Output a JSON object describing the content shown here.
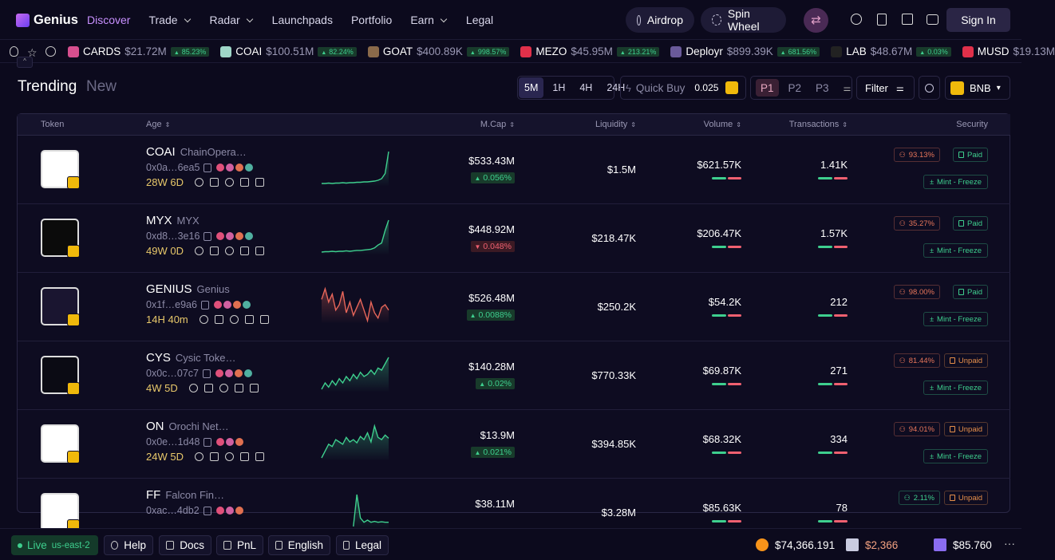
{
  "nav": {
    "brand": "Genius",
    "links": [
      {
        "label": "Discover",
        "active": true,
        "dropdown": false
      },
      {
        "label": "Trade",
        "active": false,
        "dropdown": true
      },
      {
        "label": "Radar",
        "active": false,
        "dropdown": true
      },
      {
        "label": "Launchpads",
        "active": false,
        "dropdown": false
      },
      {
        "label": "Portfolio",
        "active": false,
        "dropdown": false
      },
      {
        "label": "Earn",
        "active": false,
        "dropdown": true
      },
      {
        "label": "Legal",
        "active": false,
        "dropdown": false
      }
    ],
    "airdrop": "Airdrop",
    "spin": "Spin Wheel",
    "signin": "Sign In"
  },
  "ticker": [
    {
      "symbol": "CARDS",
      "mcap": "$21.72M",
      "change": "85.23%",
      "icon": "#d64f8f"
    },
    {
      "symbol": "COAI",
      "mcap": "$100.51M",
      "change": "82.24%",
      "icon": "#9fd6c8"
    },
    {
      "symbol": "GOAT",
      "mcap": "$400.89K",
      "change": "998.57%",
      "icon": "#8a6a4a"
    },
    {
      "symbol": "MEZO",
      "mcap": "$45.95M",
      "change": "213.21%",
      "icon": "#e0304a"
    },
    {
      "symbol": "Deployr",
      "mcap": "$899.39K",
      "change": "681.56%",
      "icon": "#6a5a9a"
    },
    {
      "symbol": "LAB",
      "mcap": "$48.67M",
      "change": "0.03%",
      "icon": "#222222"
    },
    {
      "symbol": "MUSD",
      "mcap": "$19.13M",
      "change": null,
      "icon": "#e0304a"
    }
  ],
  "toolbar": {
    "tabs": [
      "Trending",
      "New"
    ],
    "times": [
      "5M",
      "1H",
      "4H",
      "24H"
    ],
    "quick_buy": "Quick Buy",
    "amount": "0.025",
    "presets": [
      "P1",
      "P2",
      "P3"
    ],
    "filter": "Filter",
    "chain": "BNB"
  },
  "table": {
    "headers": [
      "Token",
      "Age",
      "M.Cap",
      "Liquidity",
      "Volume",
      "Transactions",
      "Security"
    ],
    "rows": [
      {
        "symbol": "COAI",
        "name": "ChainOpera…",
        "address": "0x0a…6ea5",
        "age": "28W 6D",
        "mcap": "$533.43M",
        "change": "0.056%",
        "direction": "up",
        "liquidity": "$1.5M",
        "volume": "$621.57K",
        "txns": "1.41K",
        "holders": "93.13%",
        "holders_color": "#e8765a",
        "paid": "Paid",
        "paid_color": "#3ecf8e",
        "authority": "Mint - Freeze",
        "logo_bg": "#ffffff",
        "spark_color": "#3ecf8e",
        "spark": [
          10,
          10,
          11,
          10,
          11,
          11,
          12,
          11,
          12,
          12,
          13,
          13,
          14,
          14,
          15,
          16,
          18,
          22,
          35,
          90
        ]
      },
      {
        "symbol": "MYX",
        "name": "MYX",
        "address": "0xd8…3e16",
        "age": "49W 0D",
        "mcap": "$448.92M",
        "change": "0.048%",
        "direction": "down",
        "liquidity": "$218.47K",
        "volume": "$206.47K",
        "txns": "1.57K",
        "holders": "35.27%",
        "holders_color": "#e8765a",
        "paid": "Paid",
        "paid_color": "#3ecf8e",
        "authority": "Mint - Freeze",
        "logo_bg": "#0b0b0b",
        "spark_color": "#3ecf8e",
        "spark": [
          8,
          9,
          9,
          10,
          9,
          10,
          10,
          11,
          10,
          11,
          12,
          12,
          13,
          14,
          15,
          18,
          25,
          30,
          60,
          85
        ]
      },
      {
        "symbol": "GENIUS",
        "name": "Genius",
        "address": "0x1f…e9a6",
        "age": "14H 40m",
        "mcap": "$526.48M",
        "change": "0.0088%",
        "direction": "up",
        "liquidity": "$250.2K",
        "volume": "$54.2K",
        "txns": "212",
        "holders": "98.00%",
        "holders_color": "#e8765a",
        "paid": "Paid",
        "paid_color": "#3ecf8e",
        "authority": "Mint - Freeze",
        "logo_bg": "#1a1530",
        "spark_color": "#e8665a",
        "spark": [
          60,
          80,
          55,
          70,
          40,
          50,
          75,
          35,
          55,
          30,
          45,
          60,
          40,
          20,
          55,
          35,
          25,
          45,
          50,
          40
        ]
      },
      {
        "symbol": "CYS",
        "name": "Cysic Toke…",
        "address": "0x0c…07c7",
        "age": "4W 5D",
        "mcap": "$140.28M",
        "change": "0.02%",
        "direction": "up",
        "liquidity": "$770.33K",
        "volume": "$69.87K",
        "txns": "271",
        "holders": "81.44%",
        "holders_color": "#e8765a",
        "paid": "Unpaid",
        "paid_color": "#e8904a",
        "authority": "Mint - Freeze",
        "logo_bg": "#0b0b14",
        "spark_color": "#3ecf8e",
        "spark": [
          20,
          35,
          25,
          40,
          30,
          45,
          35,
          50,
          40,
          55,
          45,
          60,
          50,
          55,
          65,
          55,
          70,
          65,
          80,
          95
        ]
      },
      {
        "symbol": "ON",
        "name": "Orochi Net…",
        "address": "0x0e…1d48",
        "age": "24W 5D",
        "mcap": "$13.9M",
        "change": "0.021%",
        "direction": "up",
        "liquidity": "$394.85K",
        "volume": "$68.32K",
        "txns": "334",
        "holders": "94.01%",
        "holders_color": "#e8765a",
        "paid": "Unpaid",
        "paid_color": "#e8904a",
        "authority": "Mint - Freeze",
        "logo_bg": "#ffffff",
        "spark_color": "#3ecf8e",
        "spark": [
          15,
          30,
          45,
          40,
          55,
          50,
          45,
          60,
          50,
          55,
          48,
          62,
          55,
          70,
          50,
          85,
          60,
          55,
          65,
          58
        ]
      },
      {
        "symbol": "FF",
        "name": "Falcon Fin…",
        "address": "0xac…4db2",
        "age": null,
        "mcap": "$38.11M",
        "change": null,
        "direction": null,
        "liquidity": "$3.28M",
        "volume": "$85.63K",
        "txns": "78",
        "holders": "2.11%",
        "holders_color": "#3ecf8e",
        "paid": "Unpaid",
        "paid_color": "#e8904a",
        "authority": null,
        "logo_bg": "#ffffff",
        "spark_color": "#3ecf8e",
        "spark": [
          null,
          null,
          null,
          null,
          null,
          null,
          null,
          null,
          null,
          20,
          95,
          40,
          30,
          35,
          30,
          32,
          30,
          31,
          30,
          30
        ]
      }
    ]
  },
  "footer": {
    "live": "Live",
    "region": "us-east-2",
    "links": [
      "Help",
      "Docs",
      "PnL",
      "English",
      "Legal"
    ],
    "prices": [
      {
        "price": "$74,366.191",
        "icon": "#f7931a",
        "color": "#ffffff"
      },
      {
        "price": "$2,366",
        "icon": "#c9cbe0",
        "color": "#f0a080"
      },
      {
        "price": "$85.760",
        "icon": "#8a6cf0",
        "color": "#ffffff"
      }
    ]
  }
}
